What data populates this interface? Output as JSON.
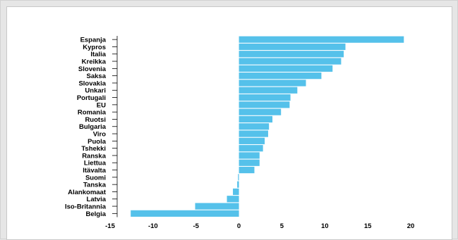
{
  "chart_data": {
    "type": "bar",
    "orientation": "horizontal",
    "categories": [
      "Espanja",
      "Kypros",
      "Italia",
      "Kreikka",
      "Slovenia",
      "Saksa",
      "Slovakia",
      "Unkari",
      "Portugali",
      "EU",
      "Romania",
      "Ruotsi",
      "Bulgaria",
      "Viro",
      "Puola",
      "Tshekki",
      "Ranska",
      "Liettua",
      "Itävalta",
      "Suomi",
      "Tanska",
      "Alankomaat",
      "Latvia",
      "Iso-Britannia",
      "Belgia"
    ],
    "values": [
      19.2,
      12.4,
      12.2,
      11.9,
      10.9,
      9.6,
      7.8,
      6.8,
      6.0,
      5.9,
      4.9,
      3.9,
      3.5,
      3.4,
      3.0,
      2.8,
      2.4,
      2.4,
      1.8,
      -0.1,
      -0.2,
      -0.7,
      -1.4,
      -5.1,
      -12.6
    ],
    "xlim": [
      -15,
      20
    ],
    "xticks": [
      "-15",
      "-10",
      "-5",
      "0",
      "5",
      "10",
      "15",
      "20"
    ],
    "bar_color": "#55c1ea",
    "grid": false,
    "legend": "none",
    "title": "",
    "xlabel": "",
    "ylabel": ""
  }
}
